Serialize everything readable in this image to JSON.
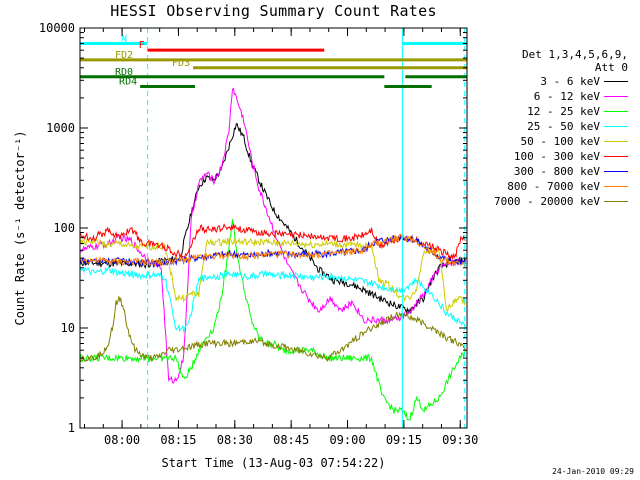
{
  "chart_data": {
    "type": "line",
    "title": "HESSI Observing Summary Count Rates",
    "xlabel": "Start Time (13-Aug-03 07:54:22)",
    "ylabel": "Count Rate (s⁻¹ detector⁻¹)",
    "ylog": true,
    "ylim": [
      1,
      10000
    ],
    "xlim_min": [
      -5.6,
      97.4
    ],
    "x_axis_start": "07:54:22",
    "x_tick_labels": [
      "08:00",
      "08:15",
      "08:30",
      "08:45",
      "09:00",
      "09:15",
      "09:30"
    ],
    "x_ticks_min": [
      5.6,
      20.6,
      35.6,
      50.6,
      65.6,
      80.6,
      95.6
    ],
    "y_tick_labels": [
      "1",
      "10",
      "100",
      "1000",
      "10000"
    ],
    "y_ticks": [
      1,
      10,
      100,
      1000,
      10000
    ],
    "legend_header": [
      "Det 1,3,4,5,6,9,",
      "Att 0"
    ],
    "legend_position": "right",
    "series": [
      {
        "name": "3 - 6 keV",
        "color": "#000000",
        "x": [
          -5.6,
          5,
          9,
          12,
          15,
          18,
          21,
          24,
          26,
          28,
          30,
          32,
          34,
          36,
          38,
          40,
          43,
          46,
          50,
          54,
          58,
          62,
          66,
          70,
          74,
          78,
          82,
          86,
          88,
          90,
          93,
          97
        ],
        "y": [
          45,
          44,
          44,
          43,
          46,
          48,
          50,
          140,
          260,
          320,
          300,
          380,
          650,
          1100,
          800,
          450,
          250,
          150,
          95,
          60,
          38,
          30,
          28,
          24,
          20,
          17,
          15,
          20,
          30,
          40,
          45,
          48
        ]
      },
      {
        "name": "6 - 12 keV",
        "color": "#ff00ff",
        "x": [
          -5.6,
          2,
          5,
          8,
          10,
          12,
          14,
          16,
          18,
          20,
          22,
          24,
          26,
          28,
          30,
          32,
          34,
          35,
          36,
          38,
          40,
          42,
          45,
          48,
          50,
          52,
          55,
          58,
          61,
          64,
          67,
          70,
          74,
          78,
          82,
          86,
          88,
          90,
          93,
          97
        ],
        "y": [
          60,
          70,
          80,
          75,
          60,
          50,
          45,
          40,
          3,
          3,
          5,
          120,
          280,
          350,
          300,
          400,
          900,
          2600,
          2000,
          1200,
          500,
          250,
          120,
          60,
          40,
          30,
          20,
          15,
          20,
          15,
          18,
          12,
          12,
          12,
          14,
          22,
          30,
          40,
          45,
          48
        ]
      },
      {
        "name": "12 - 25 keV",
        "color": "#00ff00",
        "x": [
          -5.6,
          20,
          22,
          24,
          26,
          28,
          30,
          32,
          34,
          35,
          36,
          38,
          40,
          42,
          44,
          46,
          48,
          52,
          56,
          60,
          64,
          68,
          72,
          75,
          78,
          80,
          82,
          84,
          86,
          90,
          94,
          97
        ],
        "y": [
          5,
          5,
          3,
          4,
          6,
          8,
          10,
          20,
          60,
          130,
          60,
          25,
          12,
          8,
          7,
          7,
          6,
          6,
          6,
          5,
          5,
          5,
          5,
          2,
          1.5,
          1.5,
          1.2,
          2,
          1.5,
          2,
          4,
          6
        ]
      },
      {
        "name": "25 - 50 keV",
        "color": "#00ffff",
        "x": [
          -5.6,
          -2,
          2,
          5,
          8,
          11,
          14,
          17,
          20,
          23,
          26,
          29,
          32,
          35,
          38,
          41,
          44,
          47,
          50,
          53,
          56,
          60,
          64,
          68,
          72,
          76,
          80,
          84,
          88,
          92,
          95,
          97
        ],
        "y": [
          40,
          35,
          38,
          35,
          35,
          33,
          34,
          32,
          10,
          10,
          30,
          33,
          33,
          35,
          33,
          33,
          35,
          33,
          34,
          33,
          32,
          33,
          32,
          30,
          28,
          25,
          24,
          30,
          22,
          14,
          12,
          10
        ]
      },
      {
        "name": "50 - 100 keV",
        "color": "#cccc00",
        "x": [
          -5.6,
          -2,
          2,
          5,
          8,
          11,
          14,
          17,
          20,
          22,
          24,
          26,
          28,
          30,
          32,
          34,
          36,
          40,
          44,
          48,
          52,
          56,
          60,
          64,
          68,
          72,
          74,
          76,
          78,
          80,
          82,
          84,
          86,
          88,
          90,
          92,
          95,
          97
        ],
        "y": [
          70,
          75,
          68,
          70,
          65,
          65,
          65,
          66,
          20,
          20,
          22,
          22,
          70,
          72,
          72,
          74,
          73,
          72,
          72,
          70,
          70,
          68,
          70,
          68,
          67,
          68,
          30,
          28,
          24,
          20,
          20,
          25,
          60,
          60,
          60,
          15,
          20,
          18
        ]
      },
      {
        "name": "100 - 300 keV",
        "color": "#ff0000",
        "x": [
          -5.6,
          -2,
          2,
          5,
          8,
          11,
          14,
          17,
          20,
          23,
          26,
          29,
          32,
          35,
          38,
          42,
          46,
          50,
          54,
          58,
          62,
          66,
          70,
          72,
          74,
          76,
          80,
          84,
          88,
          92,
          94,
          96,
          97
        ],
        "y": [
          85,
          80,
          95,
          80,
          100,
          70,
          70,
          65,
          55,
          55,
          100,
          95,
          100,
          105,
          95,
          90,
          88,
          85,
          85,
          80,
          80,
          78,
          85,
          95,
          65,
          70,
          80,
          75,
          65,
          55,
          50,
          80,
          75
        ]
      },
      {
        "name": "300 - 800 keV",
        "color": "#0000ff",
        "x": [
          -5.6,
          0,
          5,
          10,
          15,
          20,
          25,
          30,
          35,
          40,
          45,
          50,
          55,
          60,
          65,
          70,
          72,
          74,
          76,
          78,
          80,
          82,
          84,
          86,
          88,
          90,
          92,
          94,
          97
        ],
        "y": [
          48,
          46,
          47,
          45,
          44,
          47,
          50,
          53,
          55,
          53,
          56,
          55,
          55,
          55,
          58,
          60,
          70,
          75,
          76,
          79,
          82,
          80,
          75,
          65,
          58,
          52,
          48,
          46,
          44
        ]
      },
      {
        "name": "800 - 7000 keV",
        "color": "#ff8000",
        "x": [
          -5.6,
          0,
          5,
          10,
          15,
          20,
          25,
          30,
          35,
          40,
          45,
          50,
          55,
          60,
          65,
          70,
          72,
          74,
          76,
          78,
          80,
          82,
          84,
          86,
          88,
          90,
          92,
          94,
          97
        ],
        "y": [
          48,
          47,
          46,
          46,
          45,
          47,
          50,
          52,
          54,
          52,
          55,
          54,
          54,
          55,
          57,
          60,
          68,
          72,
          75,
          78,
          82,
          80,
          74,
          64,
          57,
          51,
          47,
          45,
          43
        ]
      },
      {
        "name": "7000 - 20000 keV",
        "color": "#808000",
        "x": [
          -5.6,
          -2,
          0,
          2,
          3.5,
          4,
          5,
          6,
          7,
          9,
          12,
          15,
          18,
          20,
          24,
          28,
          32,
          36,
          40,
          44,
          48,
          52,
          56,
          60,
          64,
          66,
          68,
          70,
          72,
          74,
          76,
          78,
          80,
          82,
          84,
          86,
          88,
          90,
          92,
          95,
          97
        ],
        "y": [
          5,
          5,
          5.5,
          7,
          12,
          18,
          20,
          16,
          10,
          6,
          5,
          5,
          6,
          6,
          6.5,
          7,
          7,
          7,
          7.5,
          7,
          6.5,
          6,
          5.5,
          5,
          6,
          7,
          8,
          9,
          10,
          11,
          12,
          13,
          14,
          13,
          12,
          11,
          10,
          9,
          8,
          7,
          6
        ]
      }
    ],
    "annotations": {
      "bars": [
        {
          "label": "N",
          "color": "#00ffff",
          "start": -5.6,
          "end": 12.4,
          "level": 7000
        },
        {
          "label": "",
          "color": "#00ffff",
          "start": 80.2,
          "end": 97.4,
          "level": 7000
        },
        {
          "label": "F",
          "color": "#ff0000",
          "start": 12.4,
          "end": 59.4,
          "level": 6000
        },
        {
          "label": "FD2",
          "color": "#999900",
          "start": -5.6,
          "end": 97.4,
          "level": 4800
        },
        {
          "label": "FD3",
          "color": "#999900",
          "start": 24.5,
          "end": 97.4,
          "level": 4000
        },
        {
          "label": "RD0",
          "color": "#007000",
          "start": -5.6,
          "end": 75.4,
          "level": 3250
        },
        {
          "label": "",
          "color": "#007000",
          "start": 81.0,
          "end": 97.4,
          "level": 3250
        },
        {
          "label": "RD4",
          "color": "#007000",
          "start": 10.4,
          "end": 25.0,
          "level": 2600
        },
        {
          "label": "",
          "color": "#007000",
          "start": 75.4,
          "end": 88.0,
          "level": 2600
        }
      ],
      "vlines": [
        {
          "x": -5.6,
          "color": "#00ffff",
          "style": "solid"
        },
        {
          "x": 12.4,
          "color": "#00ffff",
          "style": "dashed"
        },
        {
          "x": 80.2,
          "color": "#00ffff",
          "style": "solid"
        },
        {
          "x": 96.8,
          "color": "#00ffff",
          "style": "dashed"
        }
      ]
    }
  },
  "timestamp": "24-Jan-2010 09:29"
}
